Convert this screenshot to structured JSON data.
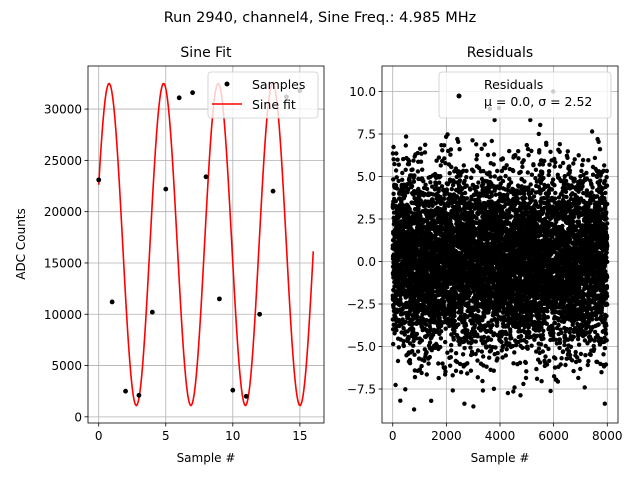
{
  "suptitle": "Run 2940, channel4, Sine Freq.: 4.985 MHz",
  "colors": {
    "samples": "#000000",
    "fit": "#ff0000",
    "residuals": "#000000"
  },
  "chart_data": [
    {
      "type": "scatter+line",
      "title": "Sine Fit",
      "xlabel": "Sample #",
      "ylabel": "ADC Counts",
      "xlim": [
        -0.8,
        16.8
      ],
      "ylim": [
        -600,
        34200
      ],
      "xticks": [
        0,
        5,
        10,
        15
      ],
      "yticks": [
        0,
        5000,
        10000,
        15000,
        20000,
        25000,
        30000
      ],
      "grid": true,
      "legend": {
        "position": "top-right",
        "entries": [
          "Samples",
          "Sine fit"
        ]
      },
      "series": [
        {
          "name": "Samples",
          "kind": "scatter",
          "x": [
            0,
            1,
            2,
            3,
            4,
            5,
            6,
            7,
            8,
            9,
            10,
            11,
            12,
            13,
            14,
            15
          ],
          "y": [
            23100,
            11200,
            2500,
            2100,
            10200,
            22200,
            31100,
            31600,
            23400,
            11500,
            2600,
            2000,
            10000,
            22000,
            31200,
            31800
          ]
        },
        {
          "name": "Sine fit",
          "kind": "line",
          "model": {
            "offset": 16800,
            "amplitude": 15700,
            "cycles_per_sample": 0.2458,
            "phase": 0.38,
            "x_start": 0,
            "x_end": 16,
            "points": 200
          }
        }
      ]
    },
    {
      "type": "scatter",
      "title": "Residuals",
      "xlabel": "Sample #",
      "ylabel": "",
      "xlim": [
        -400,
        8400
      ],
      "ylim": [
        -9.5,
        11.5
      ],
      "xticks": [
        0,
        2000,
        4000,
        6000,
        8000
      ],
      "yticks": [
        -7.5,
        -5.0,
        -2.5,
        0.0,
        2.5,
        5.0,
        7.5,
        10.0
      ],
      "grid": true,
      "legend": {
        "position": "top-right",
        "entries": [
          "Residuals",
          "$\\mu$ = 0.0, $\\sigma$ = 2.52"
        ],
        "entries_display": [
          "Residuals",
          "μ = 0.0, σ = 2.52"
        ]
      },
      "series": [
        {
          "name": "Residuals",
          "kind": "scatter",
          "count": 8000,
          "x_range": [
            0,
            7999
          ],
          "mean": 0.0,
          "std": 2.52,
          "min": -8.7,
          "max": 10.0
        }
      ]
    }
  ]
}
